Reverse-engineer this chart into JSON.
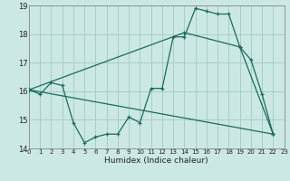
{
  "bg_color": "#cce8e4",
  "grid_color": "#a8cdc8",
  "line_color": "#1a6b5a",
  "xlabel": "Humidex (Indice chaleur)",
  "xlim": [
    0,
    23
  ],
  "ylim": [
    14,
    19
  ],
  "yticks": [
    14,
    15,
    16,
    17,
    18,
    19
  ],
  "xticks": [
    0,
    1,
    2,
    3,
    4,
    5,
    6,
    7,
    8,
    9,
    10,
    11,
    12,
    13,
    14,
    15,
    16,
    17,
    18,
    19,
    20,
    21,
    22,
    23
  ],
  "line1_x": [
    0,
    1,
    2,
    3,
    4,
    5,
    6,
    7,
    8,
    9,
    10,
    11,
    12,
    13,
    14,
    15,
    16,
    17,
    18,
    19,
    20,
    21,
    22
  ],
  "line1_y": [
    16.05,
    15.9,
    16.3,
    16.2,
    14.9,
    14.2,
    14.4,
    14.5,
    14.5,
    15.1,
    14.9,
    16.1,
    16.1,
    17.9,
    17.9,
    18.9,
    18.8,
    18.7,
    18.7,
    17.55,
    17.1,
    15.9,
    14.5
  ],
  "line2_x": [
    0,
    14,
    19,
    22
  ],
  "line2_y": [
    16.05,
    18.05,
    17.55,
    14.5
  ],
  "line3_x": [
    0,
    22
  ],
  "line3_y": [
    16.05,
    14.5
  ]
}
